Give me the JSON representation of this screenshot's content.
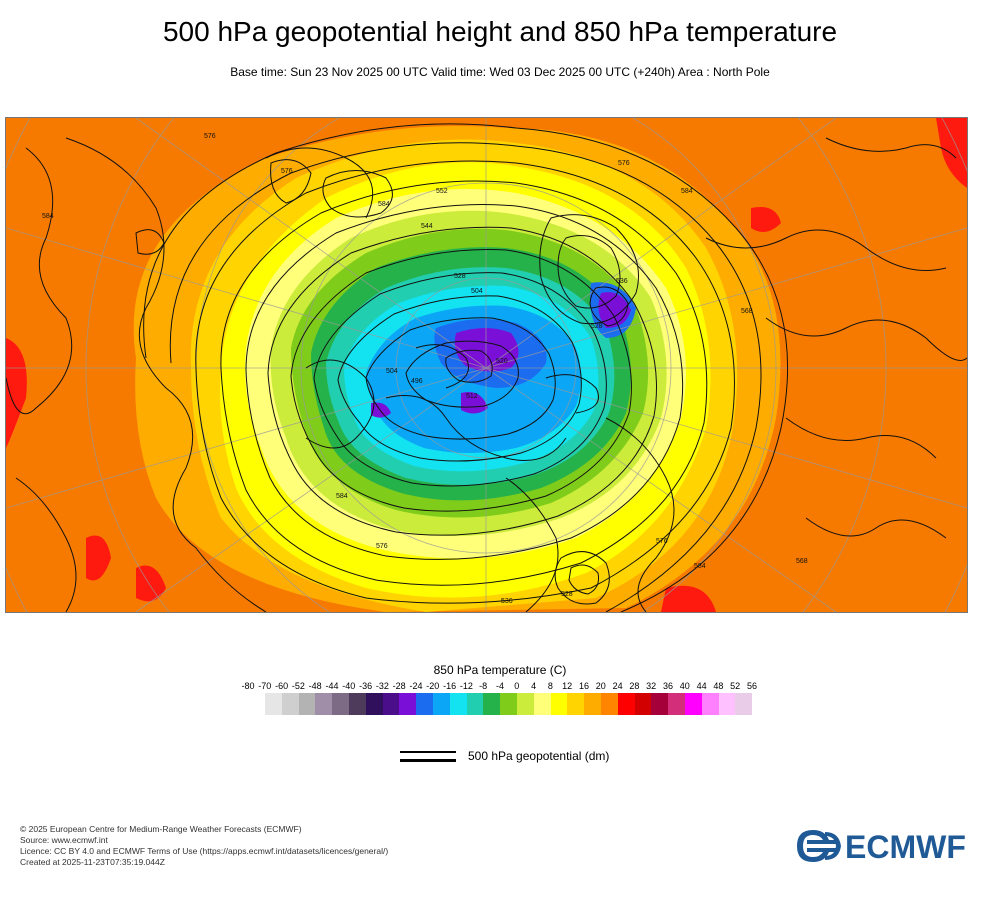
{
  "header": {
    "title": "500 hPa geopotential height and 850 hPa temperature",
    "subtitle": "Base time: Sun 23 Nov 2025 00 UTC Valid time: Wed 03 Dec 2025 00 UTC (+240h) Area : North Pole"
  },
  "map": {
    "projection": "polar stereographic",
    "area": "North Pole",
    "contour_labels": [
      "576",
      "584",
      "576",
      "584",
      "552",
      "544",
      "528",
      "520",
      "512",
      "504",
      "584",
      "576",
      "568",
      "584",
      "576",
      "528",
      "536",
      "504",
      "496",
      "584",
      "576",
      "568",
      "528",
      "536"
    ]
  },
  "legend": {
    "title": "850 hPa temperature (C)",
    "ticks": [
      "-80",
      "-70",
      "-60",
      "-52",
      "-48",
      "-44",
      "-40",
      "-36",
      "-32",
      "-28",
      "-24",
      "-20",
      "-16",
      "-12",
      "-8",
      "-4",
      "0",
      "4",
      "8",
      "12",
      "16",
      "20",
      "24",
      "28",
      "32",
      "36",
      "40",
      "44",
      "48",
      "52",
      "56"
    ],
    "colors": [
      "#e6e6e6",
      "#cfcfcf",
      "#b3b3b3",
      "#a08ea8",
      "#7d6a84",
      "#4e3b5c",
      "#30105c",
      "#4a0e8a",
      "#7a10d8",
      "#1c6cf0",
      "#0ca6f7",
      "#13e2f0",
      "#22ceb0",
      "#26b24a",
      "#80cc1a",
      "#ccec3c",
      "#ffff7a",
      "#ffff00",
      "#ffd400",
      "#ffac00",
      "#ff8400",
      "#ff0000",
      "#d20000",
      "#a6003a",
      "#d22e7a",
      "#ff00ff",
      "#ff80ff",
      "#ffc0ff",
      "#e8cce8"
    ],
    "geo_label": "500 hPa geopotential (dm)"
  },
  "footer": {
    "line1": "© 2025 European Centre for Medium-Range Weather Forecasts (ECMWF)",
    "line2": "Source: www.ecmwf.int",
    "line3": "Licence: CC BY 4.0 and ECMWF Terms of Use (https://apps.ecmwf.int/datasets/licences/general/)",
    "line4": "Created at 2025-11-23T07:35:19.044Z"
  },
  "logo": {
    "text": "ECMWF",
    "color": "#1f5a96"
  }
}
